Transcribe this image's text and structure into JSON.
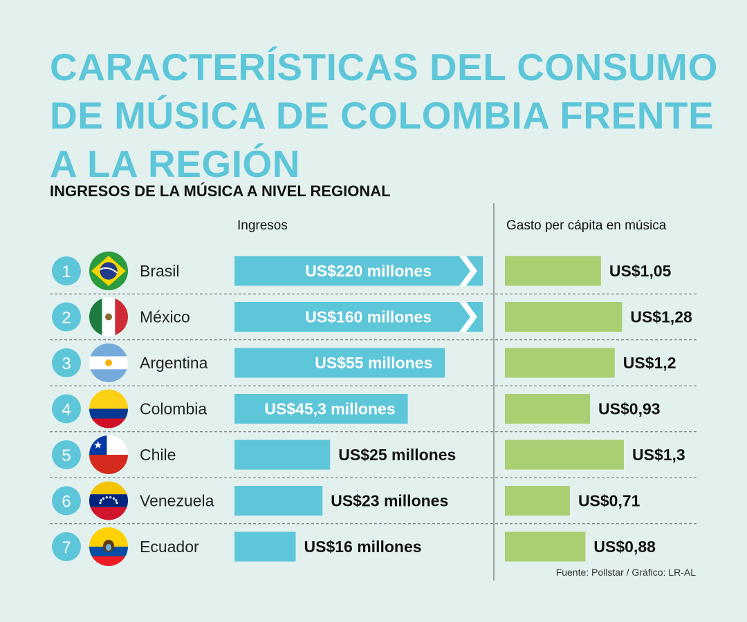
{
  "title": "CARACTERÍSTICAS DEL CONSUMO\nDE MÚSICA DE COLOMBIA FRENTE\nA LA REGIÓN",
  "subtitle": "INGRESOS DE LA MÚSICA A NIVEL REGIONAL",
  "columns": {
    "revenue_header": "Ingresos",
    "per_capita_header": "Gasto per cápita en música"
  },
  "source": "Fuente: Pollstar / Gráfico: LR-AL",
  "colors": {
    "title": "#5ec6d9",
    "revenue_bar": "#5ec6d9",
    "per_capita_bar": "#a9cf72",
    "rank_circle": "#5ec6d9",
    "background": "#e3f1ee"
  },
  "chart_data": {
    "type": "bar",
    "categories": [
      "Brasil",
      "México",
      "Argentina",
      "Colombia",
      "Chile",
      "Venezuela",
      "Ecuador"
    ],
    "ranks": [
      "1",
      "2",
      "3",
      "4",
      "5",
      "6",
      "7"
    ],
    "flag_icons": [
      "brazil-flag-icon",
      "mexico-flag-icon",
      "argentina-flag-icon",
      "colombia-flag-icon",
      "chile-flag-icon",
      "venezuela-flag-icon",
      "ecuador-flag-icon"
    ],
    "series": [
      {
        "name": "Ingresos",
        "unit": "US$ millones",
        "values": [
          220,
          160,
          55,
          45.3,
          25,
          23,
          16
        ],
        "labels": [
          "US$220 millones",
          "US$160 millones",
          "US$55 millones",
          "US$45,3 millones",
          "US$25 millones",
          "US$23 millones",
          "US$16 millones"
        ],
        "truncated": [
          true,
          true,
          false,
          false,
          false,
          false,
          false
        ]
      },
      {
        "name": "Gasto per cápita en música",
        "unit": "US$",
        "values": [
          1.05,
          1.28,
          1.2,
          0.93,
          1.3,
          0.71,
          0.88
        ],
        "labels": [
          "US$1,05",
          "US$1,28",
          "US$1,2",
          "US$0,93",
          "US$1,3",
          "US$0,71",
          "US$0,88"
        ]
      }
    ],
    "revenue_axis_max": 62,
    "per_capita_axis_max": 1.3
  }
}
